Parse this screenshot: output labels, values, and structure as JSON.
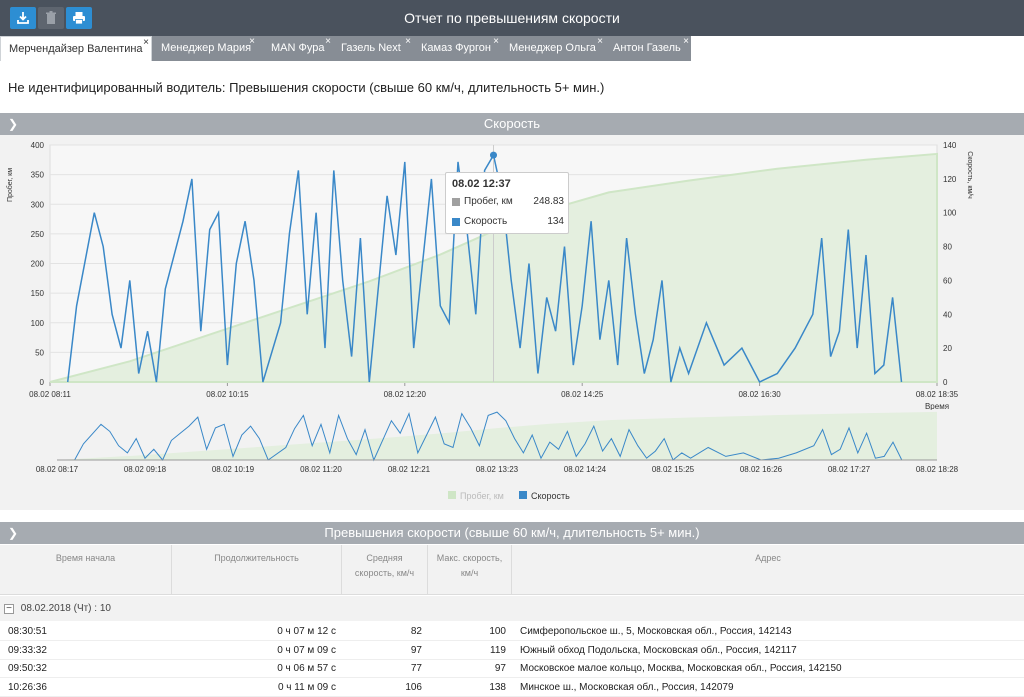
{
  "window": {
    "title": "Отчет по превышениям скорости",
    "toolbar": [
      {
        "icon": "download-icon"
      },
      {
        "icon": "trash-icon"
      },
      {
        "icon": "print-icon"
      }
    ]
  },
  "tabs": [
    {
      "label": "Мерчендайзер Валентина",
      "active": true
    },
    {
      "label": "Менеджер Мария"
    },
    {
      "label": "MAN Фура"
    },
    {
      "label": "Газель Next"
    },
    {
      "label": "Камаз Фургон"
    },
    {
      "label": "Менеджер Ольга"
    },
    {
      "label": "Антон Газель"
    }
  ],
  "tab_close": "×",
  "subtitle": "Не идентифицированный водитель: Превышения скорости (свыше 60 км/ч, длительность 5+ мин.)",
  "speed_panel": {
    "title": "Скорость"
  },
  "tooltip": {
    "time": "08.02 12:37",
    "rows": [
      {
        "label": "Пробег, км",
        "value": "248.83",
        "color": "#a0a0a0"
      },
      {
        "label": "Скорость",
        "value": "134",
        "color": "#3a88c8"
      }
    ]
  },
  "chart_data": {
    "type": "line",
    "x_ticks": [
      "08.02 08:11",
      "08.02 10:15",
      "08.02 12:20",
      "08.02 14:25",
      "08.02 16:30",
      "08.02 18:35"
    ],
    "xlabel": "Время",
    "yleft": {
      "label": "Пробег, км",
      "ticks": [
        0,
        50,
        100,
        150,
        200,
        250,
        300,
        350,
        400
      ],
      "range": [
        0,
        400
      ]
    },
    "yright": {
      "label": "Скорость, км/ч",
      "ticks": [
        0,
        20,
        40,
        60,
        80,
        100,
        120,
        140
      ],
      "range": [
        0,
        140
      ]
    },
    "series": [
      {
        "name": "Пробег, км",
        "axis": "left",
        "color": "#cfe6c6",
        "points": [
          [
            0,
            0
          ],
          [
            0.09,
            35
          ],
          [
            0.18,
            80
          ],
          [
            0.27,
            125
          ],
          [
            0.36,
            170
          ],
          [
            0.44,
            215
          ],
          [
            0.5,
            255
          ],
          [
            0.56,
            290
          ],
          [
            0.63,
            320
          ],
          [
            0.72,
            340
          ],
          [
            0.82,
            360
          ],
          [
            0.92,
            375
          ],
          [
            1.0,
            385
          ]
        ]
      },
      {
        "name": "Скорость",
        "axis": "right",
        "color": "#3a88c8",
        "points": [
          [
            0.02,
            0
          ],
          [
            0.03,
            45
          ],
          [
            0.05,
            100
          ],
          [
            0.06,
            80
          ],
          [
            0.07,
            40
          ],
          [
            0.08,
            20
          ],
          [
            0.09,
            60
          ],
          [
            0.1,
            5
          ],
          [
            0.11,
            30
          ],
          [
            0.12,
            0
          ],
          [
            0.13,
            55
          ],
          [
            0.15,
            95
          ],
          [
            0.16,
            120
          ],
          [
            0.17,
            30
          ],
          [
            0.18,
            90
          ],
          [
            0.19,
            100
          ],
          [
            0.2,
            10
          ],
          [
            0.21,
            70
          ],
          [
            0.22,
            95
          ],
          [
            0.23,
            60
          ],
          [
            0.24,
            0
          ],
          [
            0.26,
            35
          ],
          [
            0.27,
            88
          ],
          [
            0.28,
            125
          ],
          [
            0.29,
            40
          ],
          [
            0.3,
            100
          ],
          [
            0.31,
            20
          ],
          [
            0.32,
            125
          ],
          [
            0.33,
            60
          ],
          [
            0.34,
            15
          ],
          [
            0.35,
            85
          ],
          [
            0.36,
            0
          ],
          [
            0.37,
            55
          ],
          [
            0.38,
            110
          ],
          [
            0.39,
            75
          ],
          [
            0.4,
            130
          ],
          [
            0.41,
            20
          ],
          [
            0.42,
            70
          ],
          [
            0.43,
            120
          ],
          [
            0.44,
            45
          ],
          [
            0.45,
            35
          ],
          [
            0.46,
            130
          ],
          [
            0.47,
            90
          ],
          [
            0.48,
            40
          ],
          [
            0.49,
            125
          ],
          [
            0.5,
            134
          ],
          [
            0.51,
            110
          ],
          [
            0.52,
            60
          ],
          [
            0.53,
            20
          ],
          [
            0.54,
            70
          ],
          [
            0.55,
            5
          ],
          [
            0.56,
            50
          ],
          [
            0.57,
            30
          ],
          [
            0.58,
            80
          ],
          [
            0.59,
            10
          ],
          [
            0.6,
            45
          ],
          [
            0.61,
            95
          ],
          [
            0.62,
            25
          ],
          [
            0.63,
            60
          ],
          [
            0.64,
            10
          ],
          [
            0.65,
            85
          ],
          [
            0.66,
            40
          ],
          [
            0.67,
            5
          ],
          [
            0.68,
            25
          ],
          [
            0.69,
            60
          ],
          [
            0.7,
            0
          ],
          [
            0.71,
            20
          ],
          [
            0.72,
            5
          ],
          [
            0.74,
            35
          ],
          [
            0.76,
            10
          ],
          [
            0.78,
            20
          ],
          [
            0.8,
            0
          ],
          [
            0.82,
            5
          ],
          [
            0.84,
            20
          ],
          [
            0.86,
            40
          ],
          [
            0.87,
            85
          ],
          [
            0.88,
            15
          ],
          [
            0.89,
            30
          ],
          [
            0.9,
            90
          ],
          [
            0.91,
            20
          ],
          [
            0.92,
            75
          ],
          [
            0.93,
            5
          ],
          [
            0.94,
            10
          ],
          [
            0.95,
            50
          ],
          [
            0.96,
            0
          ]
        ]
      }
    ],
    "navigator_ticks": [
      "08.02 08:17",
      "08.02 09:18",
      "08.02 10:19",
      "08.02 11:20",
      "08.02 12:21",
      "08.02 13:23",
      "08.02 14:24",
      "08.02 15:25",
      "08.02 16:26",
      "08.02 17:27",
      "08.02 18:28"
    ],
    "legend": [
      "Пробег, км",
      "Скорость"
    ]
  },
  "violations": {
    "title": "Превышения скорости (свыше 60 км/ч, длительность 5+ мин.)",
    "columns": [
      "Время начала",
      "Продолжительность",
      "Средняя скорость, км/ч",
      "Макс. скорость, км/ч",
      "Адрес"
    ],
    "group": "08.02.2018 (Чт) : 10",
    "group_toggle": "−",
    "rows": [
      [
        "08:30:51",
        "0 ч 07 м 12 с",
        "82",
        "100",
        "Симферопольское ш., 5, Московская обл., Россия, 142143"
      ],
      [
        "09:33:32",
        "0 ч 07 м 09 с",
        "97",
        "119",
        "Южный обход Подольска, Московская обл., Россия, 142117"
      ],
      [
        "09:50:32",
        "0 ч 06 м 57 с",
        "77",
        "97",
        "Московское малое кольцо, Москва, Московская обл., Россия, 142150"
      ],
      [
        "10:26:36",
        "0 ч 11 м 09 с",
        "106",
        "138",
        "Минское ш., Московская обл., Россия, 142079"
      ]
    ]
  }
}
